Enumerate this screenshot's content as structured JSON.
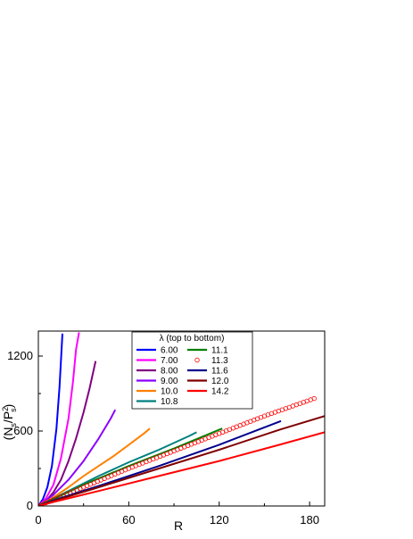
{
  "chart_data": {
    "type": "line",
    "title": "",
    "xlabel": "R",
    "ylabel_parts": [
      "(N",
      "s",
      "/P",
      "2",
      "s",
      ")"
    ],
    "xlim": [
      0,
      190
    ],
    "ylim": [
      0,
      1400
    ],
    "xticks": [
      0,
      60,
      120,
      180
    ],
    "yticks": [
      0,
      600,
      1200
    ],
    "legend_title": "λ (top to bottom)",
    "legend_position": "top-center",
    "series": [
      {
        "name": "6.00",
        "color": "#0000ff",
        "style": "line",
        "points": [
          [
            0,
            0
          ],
          [
            3,
            55
          ],
          [
            6,
            150
          ],
          [
            9,
            320
          ],
          [
            12,
            620
          ],
          [
            14,
            950
          ],
          [
            16,
            1380
          ]
        ]
      },
      {
        "name": "7.00",
        "color": "#ff00ff",
        "style": "line",
        "points": [
          [
            0,
            0
          ],
          [
            5,
            60
          ],
          [
            10,
            170
          ],
          [
            15,
            380
          ],
          [
            20,
            700
          ],
          [
            23,
            1000
          ],
          [
            25,
            1250
          ],
          [
            27,
            1390
          ]
        ]
      },
      {
        "name": "8.00",
        "color": "#800080",
        "style": "line",
        "points": [
          [
            0,
            0
          ],
          [
            5,
            40
          ],
          [
            10,
            110
          ],
          [
            15,
            210
          ],
          [
            20,
            360
          ],
          [
            25,
            540
          ],
          [
            30,
            750
          ],
          [
            34,
            940
          ],
          [
            38,
            1160
          ]
        ]
      },
      {
        "name": "9.00",
        "color": "#8b00ff",
        "style": "line",
        "points": [
          [
            0,
            0
          ],
          [
            10,
            90
          ],
          [
            20,
            210
          ],
          [
            30,
            360
          ],
          [
            40,
            540
          ],
          [
            48,
            700
          ],
          [
            51,
            770
          ]
        ]
      },
      {
        "name": "10.0",
        "color": "#ff8000",
        "style": "line",
        "points": [
          [
            0,
            0
          ],
          [
            10,
            70
          ],
          [
            20,
            150
          ],
          [
            30,
            240
          ],
          [
            40,
            320
          ],
          [
            50,
            400
          ],
          [
            60,
            490
          ],
          [
            70,
            580
          ],
          [
            74,
            620
          ]
        ]
      },
      {
        "name": "10.8",
        "color": "#008080",
        "style": "line",
        "points": [
          [
            0,
            0
          ],
          [
            10,
            60
          ],
          [
            20,
            120
          ],
          [
            40,
            240
          ],
          [
            60,
            350
          ],
          [
            80,
            450
          ],
          [
            100,
            560
          ],
          [
            105,
            590
          ]
        ]
      },
      {
        "name": "11.1",
        "color": "#008000",
        "style": "line",
        "points": [
          [
            0,
            0
          ],
          [
            10,
            55
          ],
          [
            30,
            170
          ],
          [
            60,
            320
          ],
          [
            90,
            460
          ],
          [
            122,
            620
          ]
        ]
      },
      {
        "name": "11.3",
        "color": "#ff0000",
        "style": "circle",
        "points": [
          [
            0,
            0
          ],
          [
            10,
            50
          ],
          [
            30,
            150
          ],
          [
            60,
            300
          ],
          [
            90,
            440
          ],
          [
            120,
            580
          ],
          [
            150,
            720
          ],
          [
            183,
            860
          ]
        ]
      },
      {
        "name": "11.6",
        "color": "#00008b",
        "style": "line",
        "points": [
          [
            0,
            0
          ],
          [
            10,
            45
          ],
          [
            40,
            160
          ],
          [
            80,
            320
          ],
          [
            120,
            490
          ],
          [
            161,
            680
          ]
        ]
      },
      {
        "name": "12.0",
        "color": "#800000",
        "style": "line",
        "points": [
          [
            0,
            0
          ],
          [
            10,
            40
          ],
          [
            40,
            150
          ],
          [
            80,
            300
          ],
          [
            120,
            450
          ],
          [
            160,
            610
          ],
          [
            190,
            720
          ]
        ]
      },
      {
        "name": "14.2",
        "color": "#ff0000",
        "style": "line",
        "points": [
          [
            0,
            0
          ],
          [
            10,
            32
          ],
          [
            40,
            120
          ],
          [
            80,
            240
          ],
          [
            120,
            360
          ],
          [
            160,
            490
          ],
          [
            190,
            590
          ]
        ]
      }
    ]
  }
}
